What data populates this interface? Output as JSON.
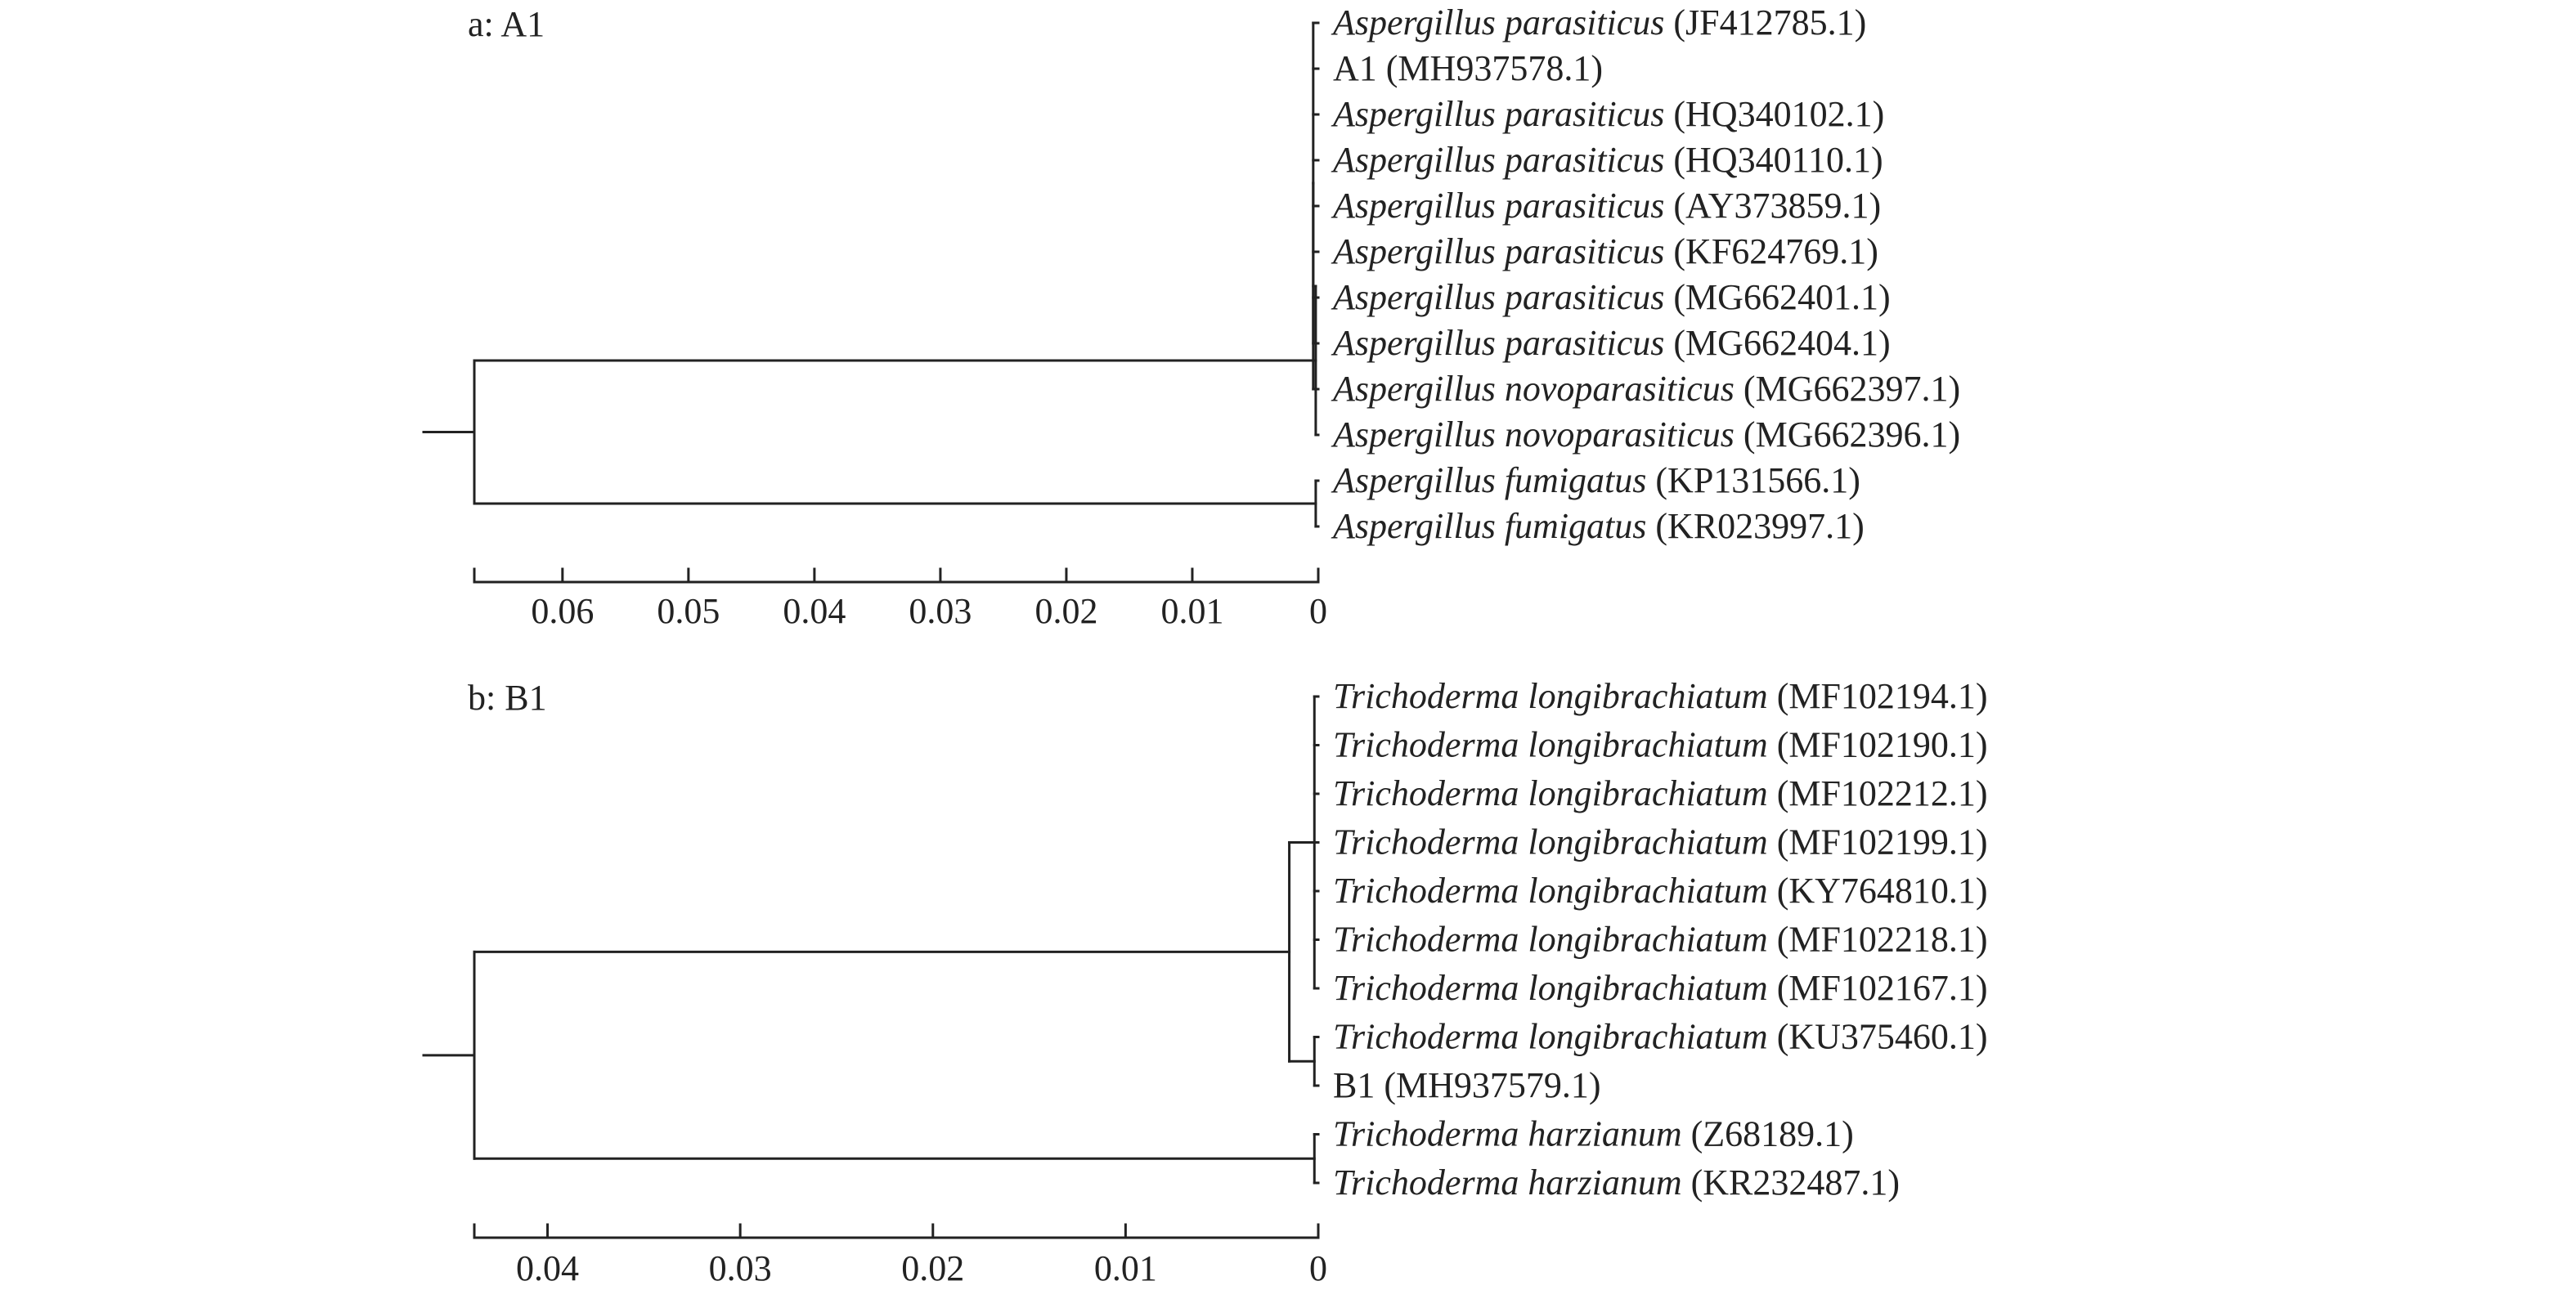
{
  "panels": [
    {
      "label": "a: A1",
      "axis_ticks": [
        "0.06",
        "0.05",
        "0.04",
        "0.03",
        "0.02",
        "0.01",
        "0"
      ],
      "axis_tick_values": [
        0.06,
        0.05,
        0.04,
        0.03,
        0.02,
        0.01,
        0
      ],
      "axis_max": 0.067,
      "leaves": [
        {
          "species": "Aspergillus parasiticus",
          "accession": "(JF412785.1)"
        },
        {
          "species": "",
          "accession": "A1 (MH937578.1)"
        },
        {
          "species": "Aspergillus parasiticus",
          "accession": "(HQ340102.1)"
        },
        {
          "species": "Aspergillus parasiticus",
          "accession": "(HQ340110.1)"
        },
        {
          "species": "Aspergillus parasiticus",
          "accession": "(AY373859.1)"
        },
        {
          "species": "Aspergillus parasiticus",
          "accession": "(KF624769.1)"
        },
        {
          "species": "Aspergillus parasiticus",
          "accession": "(MG662401.1)"
        },
        {
          "species": "Aspergillus parasiticus",
          "accession": "(MG662404.1)"
        },
        {
          "species": "Aspergillus novoparasiticus",
          "accession": "(MG662397.1)"
        },
        {
          "species": "Aspergillus novoparasiticus",
          "accession": "(MG662396.1)"
        },
        {
          "species": "Aspergillus fumigatus",
          "accession": "(KP131566.1)"
        },
        {
          "species": "Aspergillus fumigatus",
          "accession": "(KR023997.1)"
        }
      ],
      "tree": {
        "h": 0.0669,
        "c": [
          {
            "h": 0.0002,
            "c": [
              {
                "h": 0.0004,
                "c": [
                  {
                    "h": 0.0004,
                    "c": [
                      {
                        "leaf": 0
                      },
                      {
                        "leaf": 1
                      },
                      {
                        "leaf": 2
                      },
                      {
                        "leaf": 3
                      },
                      {
                        "leaf": 4
                      },
                      {
                        "leaf": 5
                      },
                      {
                        "leaf": 6
                      },
                      {
                        "leaf": 7
                      }
                    ]
                  },
                  {
                    "leaf": 8
                  }
                ]
              },
              {
                "leaf": 9
              }
            ]
          },
          {
            "h": 0.0002,
            "c": [
              {
                "leaf": 10
              },
              {
                "leaf": 11
              }
            ]
          }
        ]
      }
    },
    {
      "label": "b: B1",
      "axis_ticks": [
        "0.04",
        "0.03",
        "0.02",
        "0.01",
        "0"
      ],
      "axis_tick_values": [
        0.04,
        0.03,
        0.02,
        0.01,
        0
      ],
      "axis_max": 0.0438,
      "leaves": [
        {
          "species": "Trichoderma longibrachiatum",
          "accession": "(MF102194.1)"
        },
        {
          "species": "Trichoderma longibrachiatum",
          "accession": "(MF102190.1)"
        },
        {
          "species": "Trichoderma longibrachiatum",
          "accession": "(MF102212.1)"
        },
        {
          "species": "Trichoderma longibrachiatum",
          "accession": "(MF102199.1)"
        },
        {
          "species": "Trichoderma longibrachiatum",
          "accession": "(KY764810.1)"
        },
        {
          "species": "Trichoderma longibrachiatum",
          "accession": "(MF102218.1)"
        },
        {
          "species": "Trichoderma longibrachiatum",
          "accession": "(MF102167.1)"
        },
        {
          "species": "Trichoderma longibrachiatum",
          "accession": "(KU375460.1)"
        },
        {
          "species": "",
          "accession": "B1 (MH937579.1)"
        },
        {
          "species": "Trichoderma harzianum",
          "accession": "(Z68189.1)"
        },
        {
          "species": "Trichoderma harzianum",
          "accession": "(KR232487.1)"
        }
      ],
      "tree": {
        "h": 0.0437,
        "c": [
          {
            "h": 0.0015,
            "c": [
              {
                "h": 0.0002,
                "c": [
                  {
                    "leaf": 0
                  },
                  {
                    "leaf": 1
                  },
                  {
                    "leaf": 2
                  },
                  {
                    "leaf": 3
                  },
                  {
                    "leaf": 4
                  },
                  {
                    "leaf": 5
                  },
                  {
                    "leaf": 6
                  }
                ]
              },
              {
                "h": 0.0002,
                "c": [
                  {
                    "leaf": 7
                  },
                  {
                    "leaf": 8
                  }
                ]
              }
            ]
          },
          {
            "h": 0.0002,
            "c": [
              {
                "leaf": 9
              },
              {
                "leaf": 10
              }
            ]
          }
        ]
      }
    }
  ]
}
